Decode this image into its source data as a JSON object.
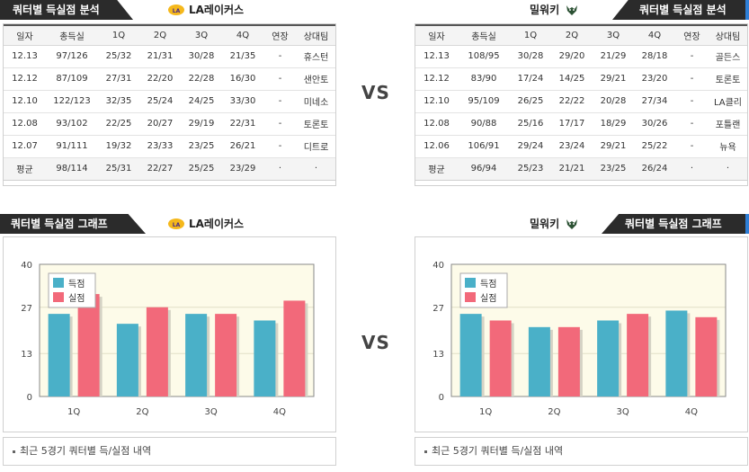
{
  "left_top": {
    "header_title": "쿼터별 득실점 분석",
    "team_name": "LA레이커스",
    "logo_icon": "lakers-logo-icon",
    "columns": [
      "일자",
      "총득실",
      "1Q",
      "2Q",
      "3Q",
      "4Q",
      "연장",
      "상대팀"
    ],
    "rows": [
      [
        "12.13",
        "97/126",
        "25/32",
        "21/31",
        "30/28",
        "21/35",
        "-",
        "휴스턴"
      ],
      [
        "12.12",
        "87/109",
        "27/31",
        "22/20",
        "22/28",
        "16/30",
        "-",
        "샌안토"
      ],
      [
        "12.10",
        "122/123",
        "32/35",
        "25/24",
        "24/25",
        "33/30",
        "-",
        "미네소"
      ],
      [
        "12.08",
        "93/102",
        "22/25",
        "20/27",
        "29/19",
        "22/31",
        "-",
        "토론토"
      ],
      [
        "12.07",
        "91/111",
        "19/32",
        "23/33",
        "23/25",
        "26/21",
        "-",
        "디트로"
      ]
    ],
    "avg": [
      "평균",
      "98/114",
      "25/31",
      "22/27",
      "25/25",
      "23/29",
      "·",
      "·"
    ]
  },
  "right_top": {
    "header_title": "쿼터별 득실점 분석",
    "team_name": "밀워키",
    "logo_icon": "bucks-logo-icon",
    "columns": [
      "일자",
      "총득실",
      "1Q",
      "2Q",
      "3Q",
      "4Q",
      "연장",
      "상대팀"
    ],
    "rows": [
      [
        "12.13",
        "108/95",
        "30/28",
        "29/20",
        "21/29",
        "28/18",
        "-",
        "골든스"
      ],
      [
        "12.12",
        "83/90",
        "17/24",
        "14/25",
        "29/21",
        "23/20",
        "-",
        "토론토"
      ],
      [
        "12.10",
        "95/109",
        "26/25",
        "22/22",
        "20/28",
        "27/34",
        "-",
        "LA클리"
      ],
      [
        "12.08",
        "90/88",
        "25/16",
        "17/17",
        "18/29",
        "30/26",
        "-",
        "포틀랜"
      ],
      [
        "12.06",
        "106/91",
        "29/24",
        "23/24",
        "29/21",
        "25/22",
        "-",
        "뉴욕"
      ]
    ],
    "avg": [
      "평균",
      "96/94",
      "25/23",
      "21/21",
      "23/25",
      "26/24",
      "·",
      "·"
    ]
  },
  "vs_label": "VS",
  "left_chart": {
    "header_title": "쿼터별 득실점 그래프",
    "team_name": "LA레이커스",
    "note": "최근 5경기 쿼터별 득/실점 내역"
  },
  "right_chart": {
    "header_title": "쿼터별 득실점 그래프",
    "team_name": "밀워키",
    "note": "최근 5경기 쿼터별 득/실점 내역"
  },
  "chart_data": [
    {
      "type": "bar",
      "categories": [
        "1Q",
        "2Q",
        "3Q",
        "4Q"
      ],
      "series": [
        {
          "name": "득점",
          "values": [
            25,
            22,
            25,
            23
          ],
          "color": "#4ab0c8"
        },
        {
          "name": "실점",
          "values": [
            31,
            27,
            25,
            29
          ],
          "color": "#f2697a"
        }
      ],
      "yticks": [
        0,
        13,
        27,
        40
      ],
      "ylim": [
        0,
        40
      ],
      "legend": "top-left"
    },
    {
      "type": "bar",
      "categories": [
        "1Q",
        "2Q",
        "3Q",
        "4Q"
      ],
      "series": [
        {
          "name": "득점",
          "values": [
            25,
            21,
            23,
            26
          ],
          "color": "#4ab0c8"
        },
        {
          "name": "실점",
          "values": [
            23,
            21,
            25,
            24
          ],
          "color": "#f2697a"
        }
      ],
      "yticks": [
        0,
        13,
        27,
        40
      ],
      "ylim": [
        0,
        40
      ],
      "legend": "top-left"
    }
  ]
}
